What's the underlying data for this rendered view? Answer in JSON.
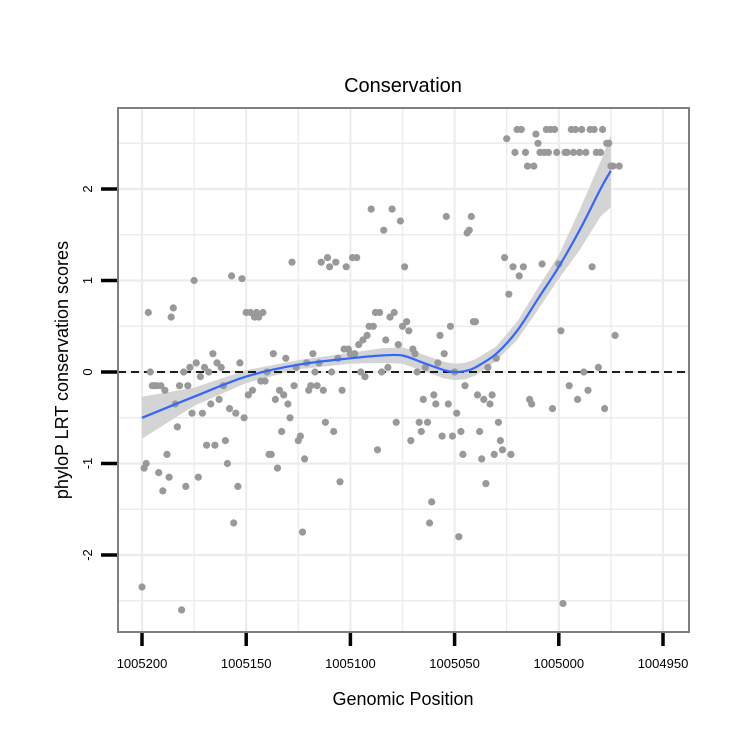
{
  "chart_data": {
    "type": "scatter",
    "title": "Conservation",
    "xlabel": "Genomic Position",
    "ylabel": "phyloP LRT conservation scores",
    "xlim": [
      1005200,
      1004950
    ],
    "ylim": [
      -2.8,
      2.9
    ],
    "x_reversed": true,
    "xticks": [
      1005200,
      1005150,
      1005100,
      1005050,
      1005000,
      1004950
    ],
    "xtick_labels": [
      "1005200",
      "1005150",
      "1005100",
      "1005050",
      "1005000",
      "1004950"
    ],
    "yticks": [
      -2,
      -1,
      0,
      1,
      2
    ],
    "ytick_labels": [
      "-2",
      "-1",
      "0",
      "1",
      "2"
    ],
    "grid": true,
    "reference_line": {
      "y": 0,
      "style": "dashed"
    },
    "point_color": "#999999",
    "smooth_color": "#3366ff",
    "band_color": "#d4d4d4",
    "panel_border_color": "#7f7f7f",
    "points": [
      [
        1005200,
        -2.35
      ],
      [
        1005199,
        -1.05
      ],
      [
        1005198,
        -1.0
      ],
      [
        1005197,
        0.65
      ],
      [
        1005196,
        0.0
      ],
      [
        1005195,
        -0.15
      ],
      [
        1005194,
        -0.15
      ],
      [
        1005193,
        -0.15
      ],
      [
        1005192,
        -1.1
      ],
      [
        1005191,
        -0.15
      ],
      [
        1005190,
        -1.3
      ],
      [
        1005189,
        -0.2
      ],
      [
        1005188,
        -0.9
      ],
      [
        1005187,
        -1.15
      ],
      [
        1005186,
        0.6
      ],
      [
        1005185,
        0.7
      ],
      [
        1005184,
        -0.35
      ],
      [
        1005183,
        -0.6
      ],
      [
        1005182,
        -0.15
      ],
      [
        1005181,
        -2.6
      ],
      [
        1005180,
        0.0
      ],
      [
        1005179,
        -1.25
      ],
      [
        1005178,
        -0.15
      ],
      [
        1005177,
        0.05
      ],
      [
        1005176,
        -0.45
      ],
      [
        1005175,
        1.0
      ],
      [
        1005174,
        0.1
      ],
      [
        1005173,
        -1.15
      ],
      [
        1005172,
        -0.05
      ],
      [
        1005171,
        -0.45
      ],
      [
        1005170,
        0.05
      ],
      [
        1005169,
        -0.8
      ],
      [
        1005168,
        0.0
      ],
      [
        1005167,
        -0.35
      ],
      [
        1005166,
        0.2
      ],
      [
        1005165,
        -0.8
      ],
      [
        1005164,
        0.1
      ],
      [
        1005163,
        -0.3
      ],
      [
        1005162,
        0.05
      ],
      [
        1005161,
        -0.15
      ],
      [
        1005160,
        -0.75
      ],
      [
        1005159,
        -1.0
      ],
      [
        1005158,
        -0.4
      ],
      [
        1005157,
        1.05
      ],
      [
        1005156,
        -1.65
      ],
      [
        1005155,
        -0.45
      ],
      [
        1005154,
        -1.25
      ],
      [
        1005153,
        0.1
      ],
      [
        1005152,
        1.02
      ],
      [
        1005151,
        -0.5
      ],
      [
        1005150,
        0.65
      ],
      [
        1005149,
        -0.25
      ],
      [
        1005148,
        0.65
      ],
      [
        1005147,
        -0.2
      ],
      [
        1005146,
        0.6
      ],
      [
        1005145,
        0.65
      ],
      [
        1005144,
        0.6
      ],
      [
        1005143,
        -0.1
      ],
      [
        1005142,
        0.65
      ],
      [
        1005141,
        -0.1
      ],
      [
        1005140,
        0.0
      ],
      [
        1005139,
        -0.9
      ],
      [
        1005138,
        -0.9
      ],
      [
        1005137,
        0.2
      ],
      [
        1005136,
        -0.3
      ],
      [
        1005135,
        -1.05
      ],
      [
        1005134,
        -0.2
      ],
      [
        1005133,
        -0.65
      ],
      [
        1005132,
        -0.25
      ],
      [
        1005131,
        0.15
      ],
      [
        1005130,
        -0.35
      ],
      [
        1005129,
        -0.5
      ],
      [
        1005128,
        1.2
      ],
      [
        1005127,
        -0.15
      ],
      [
        1005126,
        0.05
      ],
      [
        1005125,
        -0.75
      ],
      [
        1005124,
        -0.7
      ],
      [
        1005123,
        -1.75
      ],
      [
        1005122,
        -0.95
      ],
      [
        1005121,
        0.1
      ],
      [
        1005120,
        -0.2
      ],
      [
        1005119,
        -0.15
      ],
      [
        1005118,
        0.2
      ],
      [
        1005117,
        0.0
      ],
      [
        1005116,
        -0.15
      ],
      [
        1005115,
        0.1
      ],
      [
        1005114,
        1.2
      ],
      [
        1005113,
        -0.2
      ],
      [
        1005112,
        -0.55
      ],
      [
        1005111,
        1.25
      ],
      [
        1005110,
        1.15
      ],
      [
        1005109,
        0.0
      ],
      [
        1005108,
        -0.65
      ],
      [
        1005107,
        1.2
      ],
      [
        1005106,
        0.15
      ],
      [
        1005105,
        -1.2
      ],
      [
        1005104,
        -0.2
      ],
      [
        1005103,
        0.25
      ],
      [
        1005102,
        1.15
      ],
      [
        1005101,
        0.25
      ],
      [
        1005100,
        0.2
      ],
      [
        1005099,
        1.25
      ],
      [
        1005098,
        0.2
      ],
      [
        1005097,
        1.25
      ],
      [
        1005096,
        0.3
      ],
      [
        1005095,
        0.0
      ],
      [
        1005094,
        0.35
      ],
      [
        1005093,
        -0.05
      ],
      [
        1005092,
        0.4
      ],
      [
        1005091,
        0.5
      ],
      [
        1005090,
        1.78
      ],
      [
        1005089,
        0.5
      ],
      [
        1005088,
        0.65
      ],
      [
        1005087,
        -0.85
      ],
      [
        1005086,
        0.65
      ],
      [
        1005085,
        0.0
      ],
      [
        1005084,
        1.55
      ],
      [
        1005083,
        0.35
      ],
      [
        1005082,
        0.05
      ],
      [
        1005081,
        0.6
      ],
      [
        1005080,
        1.78
      ],
      [
        1005079,
        0.65
      ],
      [
        1005078,
        -0.55
      ],
      [
        1005077,
        0.3
      ],
      [
        1005076,
        1.65
      ],
      [
        1005075,
        0.5
      ],
      [
        1005074,
        1.15
      ],
      [
        1005073,
        0.55
      ],
      [
        1005072,
        0.45
      ],
      [
        1005071,
        -0.75
      ],
      [
        1005070,
        0.25
      ],
      [
        1005069,
        0.2
      ],
      [
        1005068,
        0.0
      ],
      [
        1005067,
        -0.55
      ],
      [
        1005066,
        -0.65
      ],
      [
        1005065,
        -0.3
      ],
      [
        1005064,
        0.05
      ],
      [
        1005063,
        -0.55
      ],
      [
        1005062,
        -1.65
      ],
      [
        1005061,
        -1.42
      ],
      [
        1005060,
        -0.25
      ],
      [
        1005059,
        -0.35
      ],
      [
        1005058,
        0.1
      ],
      [
        1005057,
        0.4
      ],
      [
        1005056,
        -0.7
      ],
      [
        1005055,
        0.2
      ],
      [
        1005054,
        1.7
      ],
      [
        1005053,
        -0.35
      ],
      [
        1005052,
        0.5
      ],
      [
        1005051,
        -0.7
      ],
      [
        1005050,
        0.0
      ],
      [
        1005049,
        -0.45
      ],
      [
        1005048,
        -1.8
      ],
      [
        1005047,
        -0.65
      ],
      [
        1005046,
        -0.9
      ],
      [
        1005045,
        -0.15
      ],
      [
        1005044,
        1.52
      ],
      [
        1005043,
        1.55
      ],
      [
        1005042,
        1.7
      ],
      [
        1005041,
        0.55
      ],
      [
        1005040,
        0.55
      ],
      [
        1005039,
        -0.25
      ],
      [
        1005038,
        -0.65
      ],
      [
        1005037,
        -0.95
      ],
      [
        1005036,
        -0.3
      ],
      [
        1005035,
        -1.22
      ],
      [
        1005034,
        0.05
      ],
      [
        1005033,
        -0.35
      ],
      [
        1005032,
        -0.25
      ],
      [
        1005031,
        -0.9
      ],
      [
        1005030,
        0.15
      ],
      [
        1005029,
        -0.55
      ],
      [
        1005028,
        -0.75
      ],
      [
        1005027,
        -0.85
      ],
      [
        1005026,
        1.25
      ],
      [
        1005025,
        2.55
      ],
      [
        1005024,
        0.85
      ],
      [
        1005023,
        -0.9
      ],
      [
        1005022,
        1.15
      ],
      [
        1005021,
        2.4
      ],
      [
        1005020,
        2.65
      ],
      [
        1005019,
        1.05
      ],
      [
        1005018,
        2.65
      ],
      [
        1005017,
        1.15
      ],
      [
        1005016,
        2.4
      ],
      [
        1005015,
        2.25
      ],
      [
        1005014,
        -0.3
      ],
      [
        1005013,
        -0.35
      ],
      [
        1005012,
        2.25
      ],
      [
        1005011,
        2.6
      ],
      [
        1005010,
        2.5
      ],
      [
        1005009,
        2.4
      ],
      [
        1005008,
        1.18
      ],
      [
        1005007,
        2.4
      ],
      [
        1005006,
        2.65
      ],
      [
        1005005,
        2.4
      ],
      [
        1005004,
        2.65
      ],
      [
        1005003,
        -0.4
      ],
      [
        1005002,
        2.65
      ],
      [
        1005001,
        2.4
      ],
      [
        1005000,
        1.18
      ],
      [
        1004999,
        0.45
      ],
      [
        1004998,
        -2.53
      ],
      [
        1004997,
        2.4
      ],
      [
        1004996,
        2.4
      ],
      [
        1004995,
        -0.15
      ],
      [
        1004994,
        2.65
      ],
      [
        1004993,
        2.4
      ],
      [
        1004992,
        2.65
      ],
      [
        1004991,
        -0.3
      ],
      [
        1004990,
        2.4
      ],
      [
        1004989,
        2.65
      ],
      [
        1004988,
        0.0
      ],
      [
        1004987,
        2.4
      ],
      [
        1004986,
        -0.2
      ],
      [
        1004985,
        2.65
      ],
      [
        1004984,
        1.15
      ],
      [
        1004983,
        2.65
      ],
      [
        1004982,
        2.4
      ],
      [
        1004981,
        0.05
      ],
      [
        1004980,
        2.4
      ],
      [
        1004979,
        2.65
      ],
      [
        1004978,
        -0.4
      ],
      [
        1004977,
        2.5
      ],
      [
        1004976,
        2.5
      ],
      [
        1004975,
        2.25
      ],
      [
        1004974,
        2.25
      ],
      [
        1004973,
        0.4
      ],
      [
        1004971,
        2.25
      ]
    ],
    "smooth": {
      "x": [
        1005200,
        1005175,
        1005150,
        1005125,
        1005100,
        1005085,
        1005075,
        1005065,
        1005055,
        1005050,
        1005045,
        1005040,
        1005030,
        1005020,
        1005010,
        1005000,
        1004990,
        1004980,
        1004975
      ],
      "y": [
        -0.5,
        -0.27,
        -0.05,
        0.08,
        0.15,
        0.18,
        0.18,
        0.1,
        0.02,
        0.0,
        0.01,
        0.05,
        0.2,
        0.45,
        0.8,
        1.15,
        1.55,
        2.0,
        2.2
      ],
      "lower": [
        -0.73,
        -0.37,
        -0.12,
        0.03,
        0.09,
        0.1,
        0.09,
        0.01,
        -0.07,
        -0.09,
        -0.08,
        -0.04,
        0.12,
        0.35,
        0.68,
        1.02,
        1.33,
        1.7,
        1.8
      ],
      "upper": [
        -0.27,
        -0.17,
        0.02,
        0.13,
        0.21,
        0.26,
        0.27,
        0.19,
        0.11,
        0.09,
        0.1,
        0.14,
        0.28,
        0.55,
        0.92,
        1.28,
        1.77,
        2.3,
        2.6
      ]
    }
  }
}
